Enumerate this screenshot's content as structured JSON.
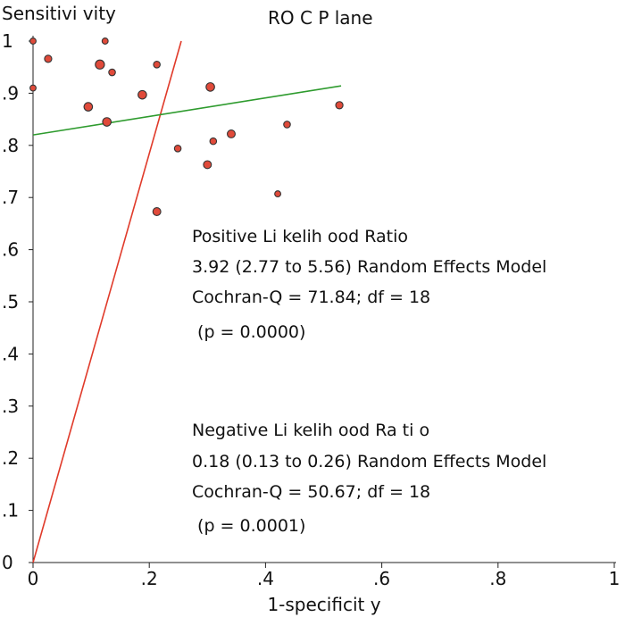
{
  "chart_data": {
    "type": "scatter",
    "title": "RO C P lane",
    "xlabel": "1-specificit y",
    "ylabel": "Sensitivi vity",
    "xlim": [
      0,
      1
    ],
    "ylim": [
      0,
      1
    ],
    "x_ticks": [
      {
        "value": 0,
        "label": "0"
      },
      {
        "value": 0.2,
        "label": ".2"
      },
      {
        "value": 0.4,
        "label": ".4"
      },
      {
        "value": 0.6,
        "label": ".6"
      },
      {
        "value": 0.8,
        "label": ".8"
      },
      {
        "value": 1,
        "label": "1"
      }
    ],
    "y_ticks": [
      {
        "value": 0,
        "label": "0"
      },
      {
        "value": 0.1,
        "label": ".1"
      },
      {
        "value": 0.2,
        "label": ".2"
      },
      {
        "value": 0.3,
        "label": ".3"
      },
      {
        "value": 0.4,
        "label": ".4"
      },
      {
        "value": 0.5,
        "label": ".5"
      },
      {
        "value": 0.6,
        "label": ".6"
      },
      {
        "value": 0.7,
        "label": ".7"
      },
      {
        "value": 0.8,
        "label": ".8"
      },
      {
        "value": 0.9,
        "label": ".9"
      },
      {
        "value": 1,
        "label": "1"
      }
    ],
    "grid": false,
    "points": [
      {
        "x": 0.0,
        "y": 1.0,
        "size": 1
      },
      {
        "x": 0.0,
        "y": 0.91,
        "size": 1
      },
      {
        "x": 0.026,
        "y": 0.966,
        "size": 1.2
      },
      {
        "x": 0.095,
        "y": 0.874,
        "size": 1.4
      },
      {
        "x": 0.115,
        "y": 0.955,
        "size": 1.5
      },
      {
        "x": 0.124,
        "y": 1.0,
        "size": 1
      },
      {
        "x": 0.127,
        "y": 0.845,
        "size": 1.4
      },
      {
        "x": 0.136,
        "y": 0.94,
        "size": 1.1
      },
      {
        "x": 0.188,
        "y": 0.897,
        "size": 1.4
      },
      {
        "x": 0.213,
        "y": 0.955,
        "size": 1.1
      },
      {
        "x": 0.213,
        "y": 0.673,
        "size": 1.3
      },
      {
        "x": 0.249,
        "y": 0.794,
        "size": 1.1
      },
      {
        "x": 0.3,
        "y": 0.763,
        "size": 1.3
      },
      {
        "x": 0.305,
        "y": 0.912,
        "size": 1.4
      },
      {
        "x": 0.31,
        "y": 0.808,
        "size": 1.1
      },
      {
        "x": 0.341,
        "y": 0.822,
        "size": 1.3
      },
      {
        "x": 0.421,
        "y": 0.707,
        "size": 1.0
      },
      {
        "x": 0.437,
        "y": 0.84,
        "size": 1.1
      },
      {
        "x": 0.527,
        "y": 0.877,
        "size": 1.2
      }
    ],
    "point_color": "#e04a3a",
    "lines": [
      {
        "name": "positive-likelihood-ratio-line",
        "x": [
          0,
          0.255
        ],
        "y": [
          0,
          1
        ],
        "color": "#e03a2a"
      },
      {
        "name": "negative-likelihood-ratio-line",
        "x": [
          0,
          0.53
        ],
        "y": [
          0.82,
          0.914
        ],
        "color": "#2e9b2e"
      }
    ],
    "annotations": {
      "positive": [
        "Positive Li kelih ood Ratio",
        "3.92 (2.77 to 5.56) Random Effects Model",
        "Cochran-Q = 71.84; df = 18",
        " (p = 0.0000)"
      ],
      "negative": [
        "Negative Li kelih ood Ra ti o",
        "0.18 (0.13 to 0.26) Random Effects Model",
        "Cochran-Q = 50.67; df = 18",
        " (p = 0.0001)"
      ]
    }
  }
}
